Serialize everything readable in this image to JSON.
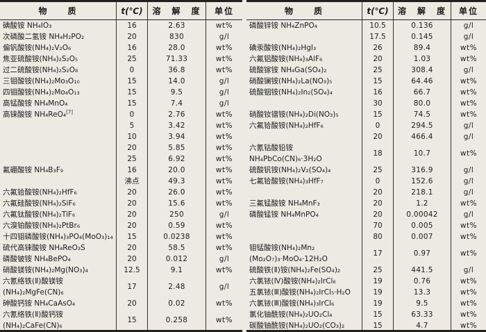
{
  "page": {
    "background": "#edeae3",
    "text_color": "#1b1b1b",
    "line_color": "#21201d",
    "description": "两栏铵盐溶解度数据表"
  },
  "tables": [
    {
      "id": "left",
      "headers": {
        "substance": "物　　质",
        "temperature": "t(℃)",
        "solubility": "溶　解　度",
        "unit": "单位"
      },
      "rows": [
        {
          "name": [
            "碘酸铵 NH₄IO₃"
          ],
          "entries": [
            {
              "t": "16",
              "s": "2.63",
              "u": "wt%"
            }
          ]
        },
        {
          "name": [
            "次磷酸二氢铵 NH₄H₂PO₂"
          ],
          "entries": [
            {
              "t": "20",
              "s": "830",
              "u": "g/l"
            }
          ]
        },
        {
          "name": [
            "偏钒酸铵(NH₄)₂V₂O₆"
          ],
          "entries": [
            {
              "t": "16",
              "s": "28.0",
              "u": "wt%"
            }
          ]
        },
        {
          "name": [
            "焦亚硫酸铵(NH₄)₂S₂O₅"
          ],
          "entries": [
            {
              "t": "25",
              "s": "71.33",
              "u": "wt%"
            }
          ]
        },
        {
          "name": [
            "过二硫酸铵(NH₄)₂S₂O₈"
          ],
          "entries": [
            {
              "t": "0",
              "s": "36.8",
              "u": "wt%"
            }
          ]
        },
        {
          "name": [
            "三钼酸铵(NH₄)₂Mo₃O₁₀"
          ],
          "entries": [
            {
              "t": "15",
              "s": "14.0",
              "u": "g/l"
            }
          ]
        },
        {
          "name": [
            "四钼酸铵(NH₄)₂Mo₄O₁₃"
          ],
          "entries": [
            {
              "t": "15",
              "s": "9.5",
              "u": "g/l"
            }
          ]
        },
        {
          "name": [
            "高锰酸铵 NH₄MnO₄"
          ],
          "entries": [
            {
              "t": "15",
              "s": "7.4",
              "u": "g/l"
            }
          ]
        },
        {
          "name": [
            "高铼酸铵 NH₄ReO₄"
          ],
          "sup": "[7]",
          "entries": [
            {
              "t": "0",
              "s": "2.76",
              "u": "wt%"
            },
            {
              "t": "5",
              "s": "3.42",
              "u": "wt%"
            },
            {
              "t": "10",
              "s": "3.94",
              "u": "wt%"
            },
            {
              "t": "20",
              "s": "5.85",
              "u": "wt%"
            },
            {
              "t": "25",
              "s": "6.92",
              "u": "wt%"
            }
          ]
        },
        {
          "name": [
            "氟硼酸铵 NH₄B₃F₉"
          ],
          "entries": [
            {
              "t": "16",
              "s": "20.0",
              "u": "wt%"
            },
            {
              "t": "沸点",
              "s": "49.3",
              "u": "wt%"
            }
          ]
        },
        {
          "name": [
            "六氟铪酸铵(NH₄)₂HfF₆"
          ],
          "entries": [
            {
              "t": "20",
              "s": "26.0",
              "u": "wt%"
            }
          ]
        },
        {
          "name": [
            "六氟硅酸铵(NH₄)₂SiF₆"
          ],
          "entries": [
            {
              "t": "20",
              "s": "15.6",
              "u": "wt%"
            }
          ]
        },
        {
          "name": [
            "六氟钛酸铵(NH₄)₂TiF₆"
          ],
          "entries": [
            {
              "t": "20",
              "s": "250",
              "u": "g/l"
            }
          ]
        },
        {
          "name": [
            "六溴铂酸铵(NH₄)₂PtBr₆"
          ],
          "entries": [
            {
              "t": "20",
              "s": "0.59",
              "u": "wt%"
            }
          ]
        },
        {
          "name": [
            "十四钼磷酸铵(NH₄)₃PO₄(MoO₃)₁₄"
          ],
          "entries": [
            {
              "t": "15",
              "s": "0.0238",
              "u": "wt%"
            }
          ]
        },
        {
          "name": [
            "硫代高铼酸铵 NH₄ReO₃S"
          ],
          "entries": [
            {
              "t": "20",
              "s": "58.5",
              "u": "wt%"
            }
          ]
        },
        {
          "name": [
            "磷酸铍铵 NH₄BePO₄"
          ],
          "entries": [
            {
              "t": "20",
              "s": "0.012",
              "u": "g/l"
            }
          ]
        },
        {
          "name": [
            "硝酸镁铵(NH₄)₂Mg(NO₃)₄"
          ],
          "entries": [
            {
              "t": "12.5",
              "s": "9.1",
              "u": "wt%"
            }
          ]
        },
        {
          "name": [
            "六氰络铁(Ⅱ)酸镁铵",
            "(NH₄)₂MgFe(CN)₆"
          ],
          "entries": [
            {
              "t": "17",
              "s": "2.48",
              "u": "g/l"
            }
          ]
        },
        {
          "name": [
            "砷酸钙铵 NH₄CaAsO₄"
          ],
          "entries": [
            {
              "t": "20",
              "s": "0.02",
              "u": "wt%"
            }
          ]
        },
        {
          "name": [
            "六氰络铁(Ⅱ)酸钙铵",
            "(NH₄)₂CaFe(CN)₆"
          ],
          "entries": [
            {
              "t": "15",
              "s": "0.258",
              "u": "wt%"
            }
          ]
        }
      ]
    },
    {
      "id": "right",
      "headers": {
        "substance": "物　　质",
        "temperature": "t(℃)",
        "solubility": "溶　解　度",
        "unit": "单位"
      },
      "rows": [
        {
          "name": [
            "磷酸锌铵 NH₄ZnPO₄"
          ],
          "entries": [
            {
              "t": "10.5",
              "s": "0.136",
              "u": "g/l"
            },
            {
              "t": "17.5",
              "s": "0.145",
              "u": "g/l"
            }
          ]
        },
        {
          "name": [
            "碘汞酸铵(NH₄)₂HgI₃"
          ],
          "entries": [
            {
              "t": "26",
              "s": "89.4",
              "u": "wt%"
            }
          ]
        },
        {
          "name": [
            "六氟铝酸铵(NH₄)₃AlF₆"
          ],
          "entries": [
            {
              "t": "20",
              "s": "1.03",
              "u": "wt%"
            }
          ]
        },
        {
          "name": [
            "硫酸镓铵 NH₄Ga(SO₄)₂"
          ],
          "entries": [
            {
              "t": "25",
              "s": "308.4",
              "u": "g/l"
            }
          ]
        },
        {
          "name": [
            "硝酸镧铵(NH₄)₂La(NO₃)₅"
          ],
          "entries": [
            {
              "t": "15",
              "s": "64.46",
              "u": "wt%"
            }
          ]
        },
        {
          "name": [
            "硫酸铟铵(NH₄)₂In₂(SO₄)₄"
          ],
          "entries": [
            {
              "t": "16",
              "s": "66.7",
              "u": "wt%"
            },
            {
              "t": "30",
              "s": "80.0",
              "u": "wt%"
            }
          ]
        },
        {
          "name": [
            "硝酸钕镨铵(NH₄)₂Di(NO₃)₅"
          ],
          "entries": [
            {
              "t": "15",
              "s": "74.5",
              "u": "wt%"
            }
          ]
        },
        {
          "name": [
            "六氟铪酸铵(NH₄)₂HfF₆"
          ],
          "entries": [
            {
              "t": "0",
              "s": "294.5",
              "u": "g/l"
            },
            {
              "t": "20",
              "s": "466.4",
              "u": "g/l"
            }
          ]
        },
        {
          "name": [
            "六氰钴酸铅铵",
            "NH₄PbCo(CN)₆·3H₂O"
          ],
          "entries": [
            {
              "t": "18",
              "s": "10.7",
              "u": "wt%"
            }
          ]
        },
        {
          "name": [
            "硫酸钒铵(NH₄)₂V₂(SO₄)₄"
          ],
          "entries": [
            {
              "t": "25",
              "s": "316.9",
              "u": "g/l"
            }
          ]
        },
        {
          "name": [
            "七氟铪酸铵(NH₄)₃HfF₇"
          ],
          "entries": [
            {
              "t": "0",
              "s": "152.6",
              "u": "g/l"
            },
            {
              "t": "20",
              "s": "218.1",
              "u": "g/l"
            }
          ]
        },
        {
          "name": [
            "三氟锰酸铵 NH₄MnF₃"
          ],
          "entries": [
            {
              "t": "20",
              "s": "1.2",
              "u": "wt%"
            }
          ]
        },
        {
          "name": [
            "磷酸锰铵 NH₄MnPO₄"
          ],
          "entries": [
            {
              "t": "20",
              "s": "0.00042",
              "u": "g/l"
            },
            {
              "t": "70",
              "s": "0.005",
              "u": "wt%"
            },
            {
              "t": "80",
              "s": "0.007",
              "u": "wt%"
            }
          ]
        },
        {
          "name": [
            "钼锰酸铵(NH₄)₂Mn₂",
            "(Mo₂O₇)₃·MoO₄·12H₂O"
          ],
          "entries": [
            {
              "t": "17",
              "s": "0.97",
              "u": "wt%"
            }
          ]
        },
        {
          "name": [
            "硫酸铁(Ⅱ)铵(NH₄)₂Fe(SO₄)₂"
          ],
          "entries": [
            {
              "t": "25",
              "s": "441.5",
              "u": "g/l"
            }
          ]
        },
        {
          "name": [
            "六氯铱(Ⅳ)酸铵(NH₄)₂IrCl₆"
          ],
          "entries": [
            {
              "t": "19",
              "s": "0.76",
              "u": "wt%"
            }
          ]
        },
        {
          "name": [
            "五氯铱(Ⅲ)酸铵(NH₄)₂IrCl₅·H₂O"
          ],
          "entries": [
            {
              "t": "19",
              "s": "13.3",
              "u": "wt%"
            }
          ]
        },
        {
          "name": [
            "六氯铱(Ⅲ)酸铵(NH₄)₃IrCl₆"
          ],
          "entries": [
            {
              "t": "19",
              "s": "9.5",
              "u": "wt%"
            }
          ]
        },
        {
          "name": [
            "氯化铀酰铵(NH₄)₂UO₂Cl₄"
          ],
          "entries": [
            {
              "t": "15",
              "s": "63.33",
              "u": "wt%"
            }
          ]
        },
        {
          "name": [
            "碳酸铀酰铵(NH₄)₂UO₂(CO₃)₂"
          ],
          "entries": [
            {
              "t": "15",
              "s": "4.7",
              "u": "wt%"
            }
          ]
        }
      ]
    }
  ]
}
